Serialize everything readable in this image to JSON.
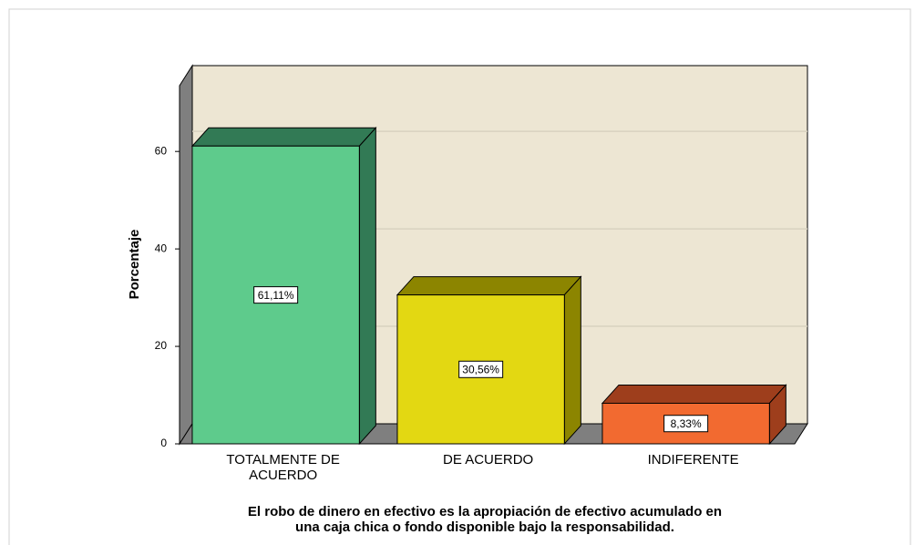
{
  "chart_data": {
    "type": "bar3d",
    "ylabel": "Porcentaje",
    "xlabel": [
      "El robo de dinero en efectivo es la apropiación de efectivo acumulado en",
      "una caja chica o fondo disponible bajo la responsabilidad."
    ],
    "categories": [
      "TOTALMENTE DE ACUERDO",
      "DE ACUERDO",
      "INDIFERENTE"
    ],
    "values": [
      61.11,
      30.56,
      8.33
    ],
    "value_labels": [
      "61,11%",
      "30,56%",
      "8,33%"
    ],
    "colors": [
      "#5ecb8c",
      "#e3d812",
      "#f26a30"
    ],
    "shade_colors": [
      "#327a55",
      "#8c8500",
      "#9e3e1c"
    ],
    "ylim": [
      0,
      73.5
    ],
    "yticks": [
      0,
      20,
      40,
      60
    ],
    "grid": true
  }
}
